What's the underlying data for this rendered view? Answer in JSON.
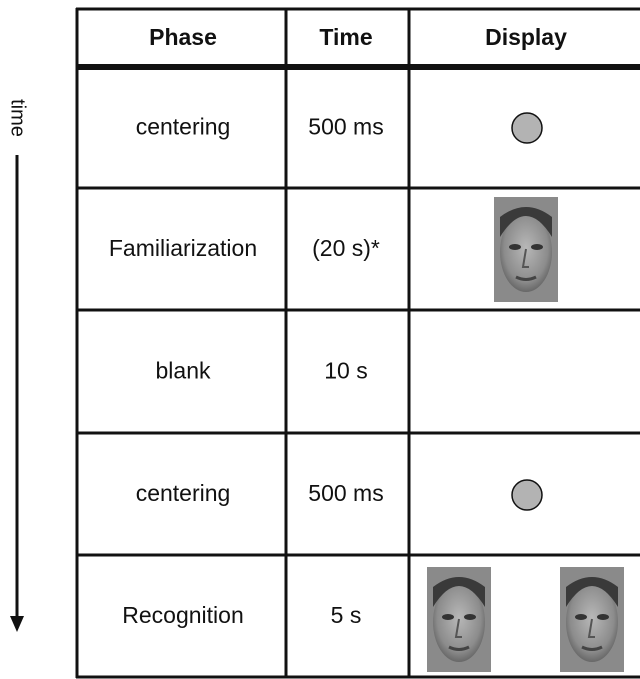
{
  "time_label": "time",
  "table": {
    "header": [
      "Phase",
      "Time",
      "Display"
    ],
    "rows": [
      [
        "centering",
        "500 ms"
      ],
      [
        "Familiarization",
        "(20 s)*"
      ],
      [
        "blank",
        "10 s"
      ],
      [
        "centering",
        "500 ms"
      ],
      [
        "Recognition",
        "5 s"
      ]
    ]
  }
}
